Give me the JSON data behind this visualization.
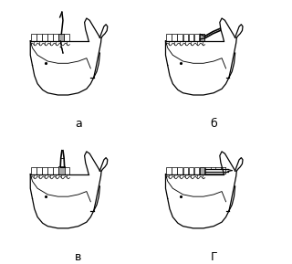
{
  "background_color": "#ffffff",
  "labels": [
    "a",
    "б",
    "в",
    "Г"
  ],
  "fig_width": 3.2,
  "fig_height": 2.89,
  "dpi": 100,
  "gray_fill": "#aaaaaa",
  "tooth_fill": "#cccccc"
}
